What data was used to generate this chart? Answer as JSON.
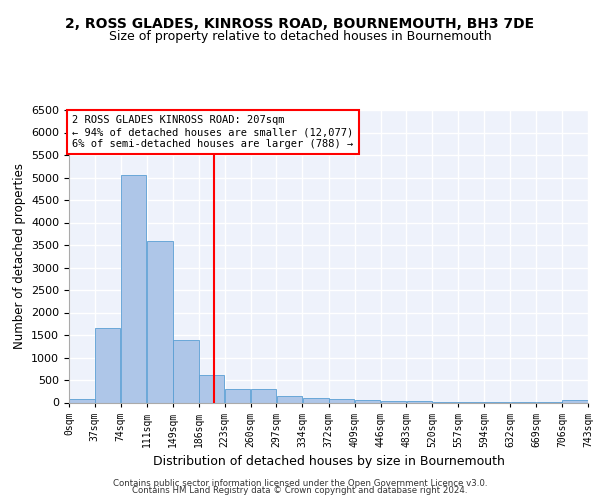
{
  "title": "2, ROSS GLADES, KINROSS ROAD, BOURNEMOUTH, BH3 7DE",
  "subtitle": "Size of property relative to detached houses in Bournemouth",
  "xlabel": "Distribution of detached houses by size in Bournemouth",
  "ylabel": "Number of detached properties",
  "bar_color": "#aec6e8",
  "bar_edge_color": "#5a9fd4",
  "background_color": "#eef2fb",
  "grid_color": "#ffffff",
  "annotation_text": "2 ROSS GLADES KINROSS ROAD: 207sqm\n← 94% of detached houses are smaller (12,077)\n6% of semi-detached houses are larger (788) →",
  "marker_x": 207,
  "marker_color": "red",
  "footer1": "Contains HM Land Registry data © Crown copyright and database right 2024.",
  "footer2": "Contains public sector information licensed under the Open Government Licence v3.0.",
  "bins": [
    0,
    37,
    74,
    111,
    149,
    186,
    223,
    260,
    297,
    334,
    372,
    409,
    446,
    483,
    520,
    557,
    594,
    632,
    669,
    706,
    743
  ],
  "counts": [
    75,
    1650,
    5050,
    3600,
    1400,
    620,
    290,
    290,
    145,
    100,
    80,
    55,
    40,
    30,
    20,
    15,
    10,
    8,
    5,
    55
  ],
  "xlim": [
    0,
    743
  ],
  "ylim": [
    0,
    6500
  ],
  "yticks": [
    0,
    500,
    1000,
    1500,
    2000,
    2500,
    3000,
    3500,
    4000,
    4500,
    5000,
    5500,
    6000,
    6500
  ],
  "tick_labels": [
    "0sqm",
    "37sqm",
    "74sqm",
    "111sqm",
    "149sqm",
    "186sqm",
    "223sqm",
    "260sqm",
    "297sqm",
    "334sqm",
    "372sqm",
    "409sqm",
    "446sqm",
    "483sqm",
    "520sqm",
    "557sqm",
    "594sqm",
    "632sqm",
    "669sqm",
    "706sqm",
    "743sqm"
  ]
}
